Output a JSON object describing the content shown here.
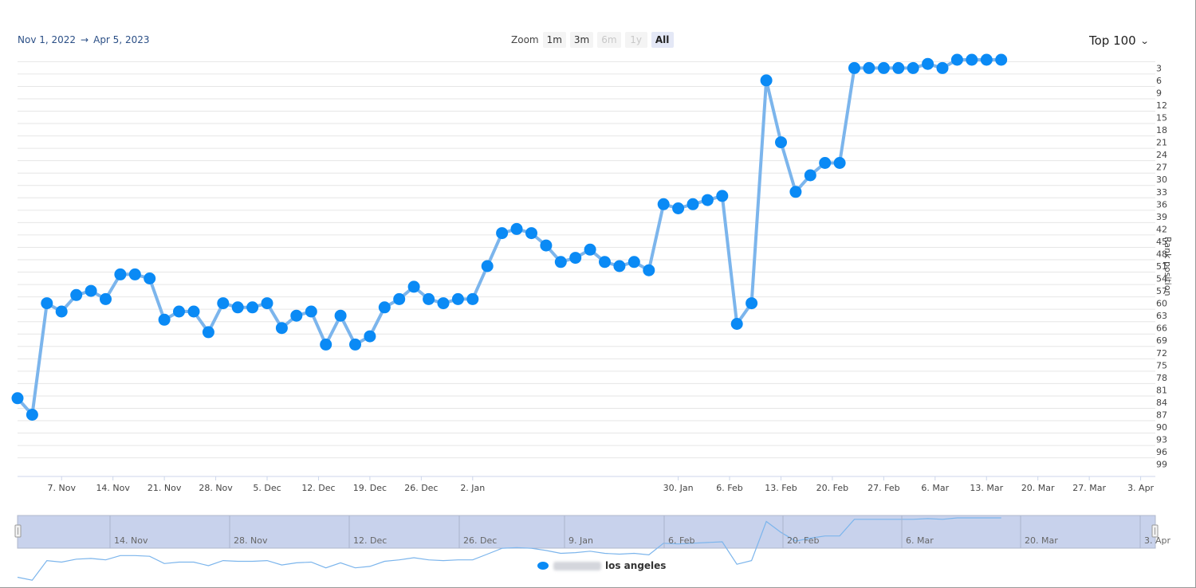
{
  "date_range": {
    "from": "Nov 1, 2022",
    "arrow": "→",
    "to": "Apr 5, 2023"
  },
  "zoom": {
    "label": "Zoom",
    "buttons": [
      {
        "label": "1m",
        "state": "normal"
      },
      {
        "label": "3m",
        "state": "normal"
      },
      {
        "label": "6m",
        "state": "disabled"
      },
      {
        "label": "1y",
        "state": "disabled"
      },
      {
        "label": "All",
        "state": "active"
      }
    ]
  },
  "top_selector": {
    "label": "Top 100"
  },
  "legend": {
    "series_label": "los angeles",
    "marker_color": "#0a8af5"
  },
  "colors": {
    "line": "#7cb5ec",
    "marker": "#0a8af5",
    "navigator_fill": "#c8d2ec",
    "grid": "#e6e6e6"
  },
  "navigator_labels": [
    "14. Nov",
    "28. Nov",
    "12. Dec",
    "26. Dec",
    "9. Jan",
    "6. Feb",
    "20. Feb",
    "6. Mar",
    "20. Mar",
    "3. Apr"
  ],
  "chart_data": {
    "type": "line",
    "ylabel": "Rank position",
    "y_reversed": true,
    "ylim": [
      1,
      100
    ],
    "x_range": [
      "2022-11-01",
      "2023-04-05"
    ],
    "y_ticks": [
      3,
      6,
      9,
      12,
      15,
      18,
      21,
      24,
      27,
      30,
      33,
      36,
      39,
      42,
      45,
      48,
      51,
      54,
      57,
      60,
      63,
      66,
      69,
      72,
      75,
      78,
      81,
      84,
      87,
      90,
      93,
      96,
      99
    ],
    "x_ticks": [
      {
        "date": "2022-11-07",
        "label": "7. Nov"
      },
      {
        "date": "2022-11-14",
        "label": "14. Nov"
      },
      {
        "date": "2022-11-21",
        "label": "21. Nov"
      },
      {
        "date": "2022-11-28",
        "label": "28. Nov"
      },
      {
        "date": "2022-12-05",
        "label": "5. Dec"
      },
      {
        "date": "2022-12-12",
        "label": "12. Dec"
      },
      {
        "date": "2022-12-19",
        "label": "19. Dec"
      },
      {
        "date": "2022-12-26",
        "label": "26. Dec"
      },
      {
        "date": "2023-01-02",
        "label": "2. Jan"
      },
      {
        "date": "2023-01-30",
        "label": "30. Jan"
      },
      {
        "date": "2023-02-06",
        "label": "6. Feb"
      },
      {
        "date": "2023-02-13",
        "label": "13. Feb"
      },
      {
        "date": "2023-02-20",
        "label": "20. Feb"
      },
      {
        "date": "2023-02-27",
        "label": "27. Feb"
      },
      {
        "date": "2023-03-06",
        "label": "6. Mar"
      },
      {
        "date": "2023-03-13",
        "label": "13. Mar"
      },
      {
        "date": "2023-03-20",
        "label": "20. Mar"
      },
      {
        "date": "2023-03-27",
        "label": "27. Mar"
      },
      {
        "date": "2023-04-03",
        "label": "3. Apr"
      }
    ],
    "series": [
      {
        "name": "los angeles",
        "points": [
          [
            "2022-11-01",
            83
          ],
          [
            "2022-11-03",
            87
          ],
          [
            "2022-11-05",
            60
          ],
          [
            "2022-11-07",
            62
          ],
          [
            "2022-11-09",
            58
          ],
          [
            "2022-11-11",
            57
          ],
          [
            "2022-11-13",
            59
          ],
          [
            "2022-11-15",
            53
          ],
          [
            "2022-11-17",
            53
          ],
          [
            "2022-11-19",
            54
          ],
          [
            "2022-11-21",
            64
          ],
          [
            "2022-11-23",
            62
          ],
          [
            "2022-11-25",
            62
          ],
          [
            "2022-11-27",
            67
          ],
          [
            "2022-11-29",
            60
          ],
          [
            "2022-12-01",
            61
          ],
          [
            "2022-12-03",
            61
          ],
          [
            "2022-12-05",
            60
          ],
          [
            "2022-12-07",
            66
          ],
          [
            "2022-12-09",
            63
          ],
          [
            "2022-12-11",
            62
          ],
          [
            "2022-12-13",
            70
          ],
          [
            "2022-12-15",
            63
          ],
          [
            "2022-12-17",
            70
          ],
          [
            "2022-12-19",
            68
          ],
          [
            "2022-12-21",
            61
          ],
          [
            "2022-12-23",
            59
          ],
          [
            "2022-12-25",
            56
          ],
          [
            "2022-12-27",
            59
          ],
          [
            "2022-12-29",
            60
          ],
          [
            "2022-12-31",
            59
          ],
          [
            "2023-01-02",
            59
          ],
          [
            "2023-01-04",
            51
          ],
          [
            "2023-01-06",
            43
          ],
          [
            "2023-01-08",
            42
          ],
          [
            "2023-01-10",
            43
          ],
          [
            "2023-01-12",
            46
          ],
          [
            "2023-01-14",
            50
          ],
          [
            "2023-01-16",
            49
          ],
          [
            "2023-01-18",
            47
          ],
          [
            "2023-01-20",
            50
          ],
          [
            "2023-01-22",
            51
          ],
          [
            "2023-01-24",
            50
          ],
          [
            "2023-01-26",
            52
          ],
          [
            "2023-01-28",
            36
          ],
          [
            "2023-01-30",
            37
          ],
          [
            "2023-02-01",
            36
          ],
          [
            "2023-02-03",
            35
          ],
          [
            "2023-02-05",
            34
          ],
          [
            "2023-02-07",
            65
          ],
          [
            "2023-02-09",
            60
          ],
          [
            "2023-02-11",
            6
          ],
          [
            "2023-02-13",
            21
          ],
          [
            "2023-02-15",
            33
          ],
          [
            "2023-02-17",
            29
          ],
          [
            "2023-02-19",
            26
          ],
          [
            "2023-02-21",
            26
          ],
          [
            "2023-02-23",
            3
          ],
          [
            "2023-02-25",
            3
          ],
          [
            "2023-02-27",
            3
          ],
          [
            "2023-03-01",
            3
          ],
          [
            "2023-03-03",
            3
          ],
          [
            "2023-03-05",
            2
          ],
          [
            "2023-03-07",
            3
          ],
          [
            "2023-03-09",
            1
          ],
          [
            "2023-03-11",
            1
          ],
          [
            "2023-03-13",
            1
          ],
          [
            "2023-03-15",
            1
          ]
        ]
      }
    ]
  }
}
